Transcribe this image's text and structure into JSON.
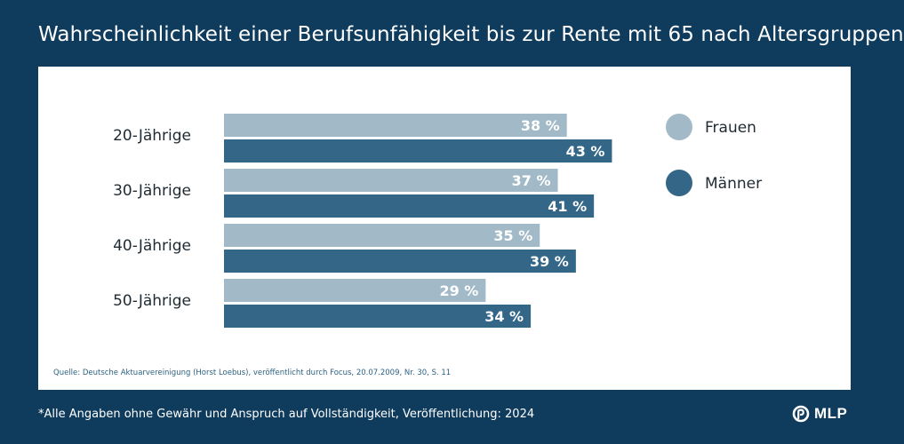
{
  "header": {
    "title": "Wahrscheinlichkeit einer Berufsunfähigkeit bis zur Rente mit 65 nach Altersgruppen"
  },
  "colors": {
    "frauen": "#a2b9c8",
    "maenner": "#336687",
    "background": "#0f3b5c"
  },
  "chart_data": {
    "type": "bar",
    "orientation": "horizontal",
    "categories": [
      "20-Jährige",
      "30-Jährige",
      "40-Jährige",
      "50-Jährige"
    ],
    "series": [
      {
        "name": "Frauen",
        "values": [
          38,
          37,
          35,
          29
        ],
        "labels": [
          "38 %",
          "37 %",
          "35 %",
          "29 %"
        ]
      },
      {
        "name": "Männer",
        "values": [
          43,
          41,
          39,
          34
        ],
        "labels": [
          "43 %",
          "41 %",
          "39 %",
          "34 %"
        ]
      }
    ],
    "title": "Wahrscheinlichkeit einer Berufsunfähigkeit bis zur Rente mit 65 nach Altersgruppen",
    "unit": "%",
    "legend": "right",
    "grid": false
  },
  "source": "Quelle: Deutsche Aktuarvereinigung (Horst Loebus), veröffentlicht durch Focus, 20.07.2009, Nr. 30, S. 11",
  "footnote": "*Alle Angaben ohne Gewähr und Anspruch auf Vollständigkeit, Veröffentlichung: 2024",
  "logo": {
    "text": "MLP",
    "icon": "mlp-logo-icon"
  }
}
